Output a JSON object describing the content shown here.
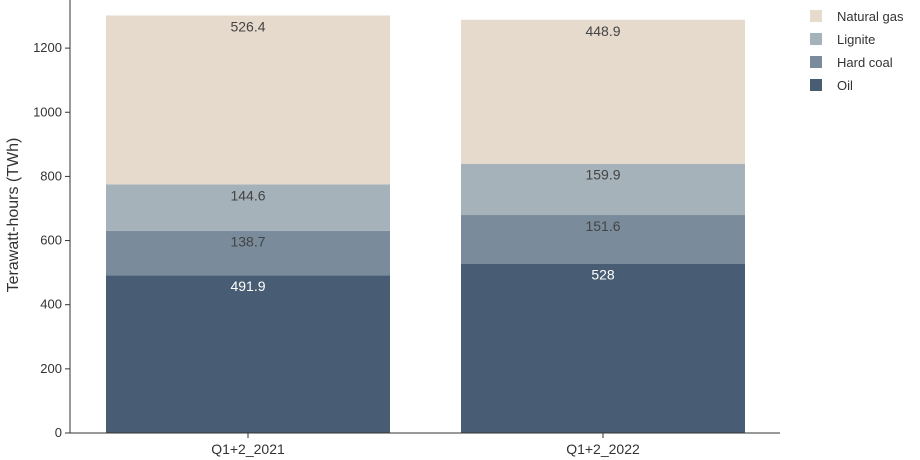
{
  "chart_data": {
    "type": "bar",
    "stacked": true,
    "title": "",
    "xlabel": "",
    "ylabel": "Terawatt-hours (TWh)",
    "ylim": [
      0,
      1350
    ],
    "yticks": [
      0,
      200,
      400,
      600,
      800,
      1000,
      1200
    ],
    "categories": [
      "Q1+2_2021",
      "Q1+2_2022"
    ],
    "series": [
      {
        "name": "Oil",
        "values": [
          491.9,
          528
        ],
        "labels": [
          "491.9",
          "528"
        ],
        "color": "#485d73",
        "label_color": "#ffffff"
      },
      {
        "name": "Hard coal",
        "values": [
          138.7,
          151.6
        ],
        "labels": [
          "138.7",
          "151.6"
        ],
        "color": "#7a8c9b",
        "label_color": "#444444"
      },
      {
        "name": "Lignite",
        "values": [
          144.6,
          159.9
        ],
        "labels": [
          "144.6",
          "159.9"
        ],
        "color": "#a5b2ba",
        "label_color": "#444444"
      },
      {
        "name": "Natural gas",
        "values": [
          526.4,
          448.9
        ],
        "labels": [
          "526.4",
          "448.9"
        ],
        "color": "#e6dacd",
        "label_color": "#444444"
      }
    ],
    "legend": {
      "position": "top-right",
      "order": [
        "Natural gas",
        "Lignite",
        "Hard coal",
        "Oil"
      ]
    },
    "grid": false
  }
}
